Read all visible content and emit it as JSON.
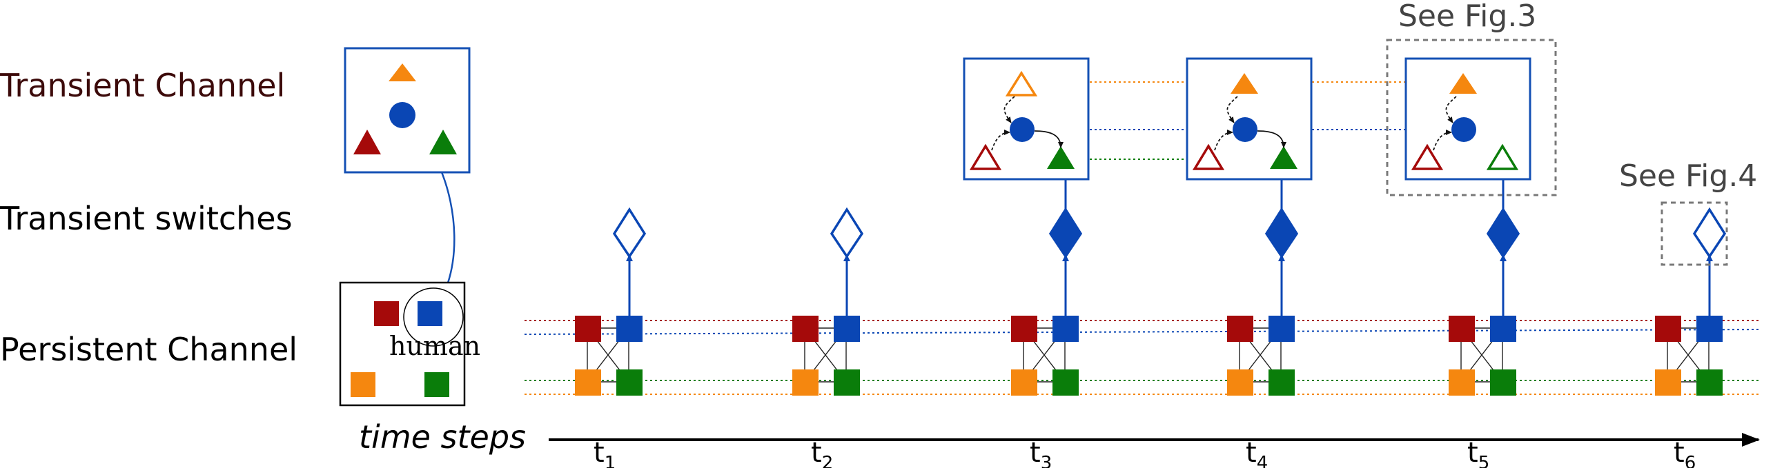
{
  "labels": {
    "transient_channel": "Transient Channel",
    "transient_switches": "Transient switches",
    "persistent_channel": "Persistent Channel",
    "time_steps": "time steps",
    "human": "human",
    "see_fig3": "See Fig.3",
    "see_fig4": "See Fig.4"
  },
  "time_steps": [
    {
      "main": "t",
      "sub": "1",
      "switch": "open"
    },
    {
      "main": "t",
      "sub": "2",
      "switch": "open"
    },
    {
      "main": "t",
      "sub": "3",
      "switch": "closed"
    },
    {
      "main": "t",
      "sub": "4",
      "switch": "closed"
    },
    {
      "main": "t",
      "sub": "5",
      "switch": "closed"
    },
    {
      "main": "t",
      "sub": "6",
      "switch": "open"
    }
  ],
  "colors": {
    "red": "#a50a0a",
    "blue": "#0a46b4",
    "orange": "#f5870f",
    "green": "#0a7d0a",
    "box_border": "#1450b4",
    "dashed_gray": "#787878",
    "label_dark": "#3c0a0a"
  },
  "icons": {
    "switch_open": "hollow-diamond-icon",
    "switch_closed": "filled-diamond-icon",
    "agent_human": "blue-circle-icon",
    "agent_triangle": "triangle-icon",
    "agent_square": "square-icon"
  }
}
